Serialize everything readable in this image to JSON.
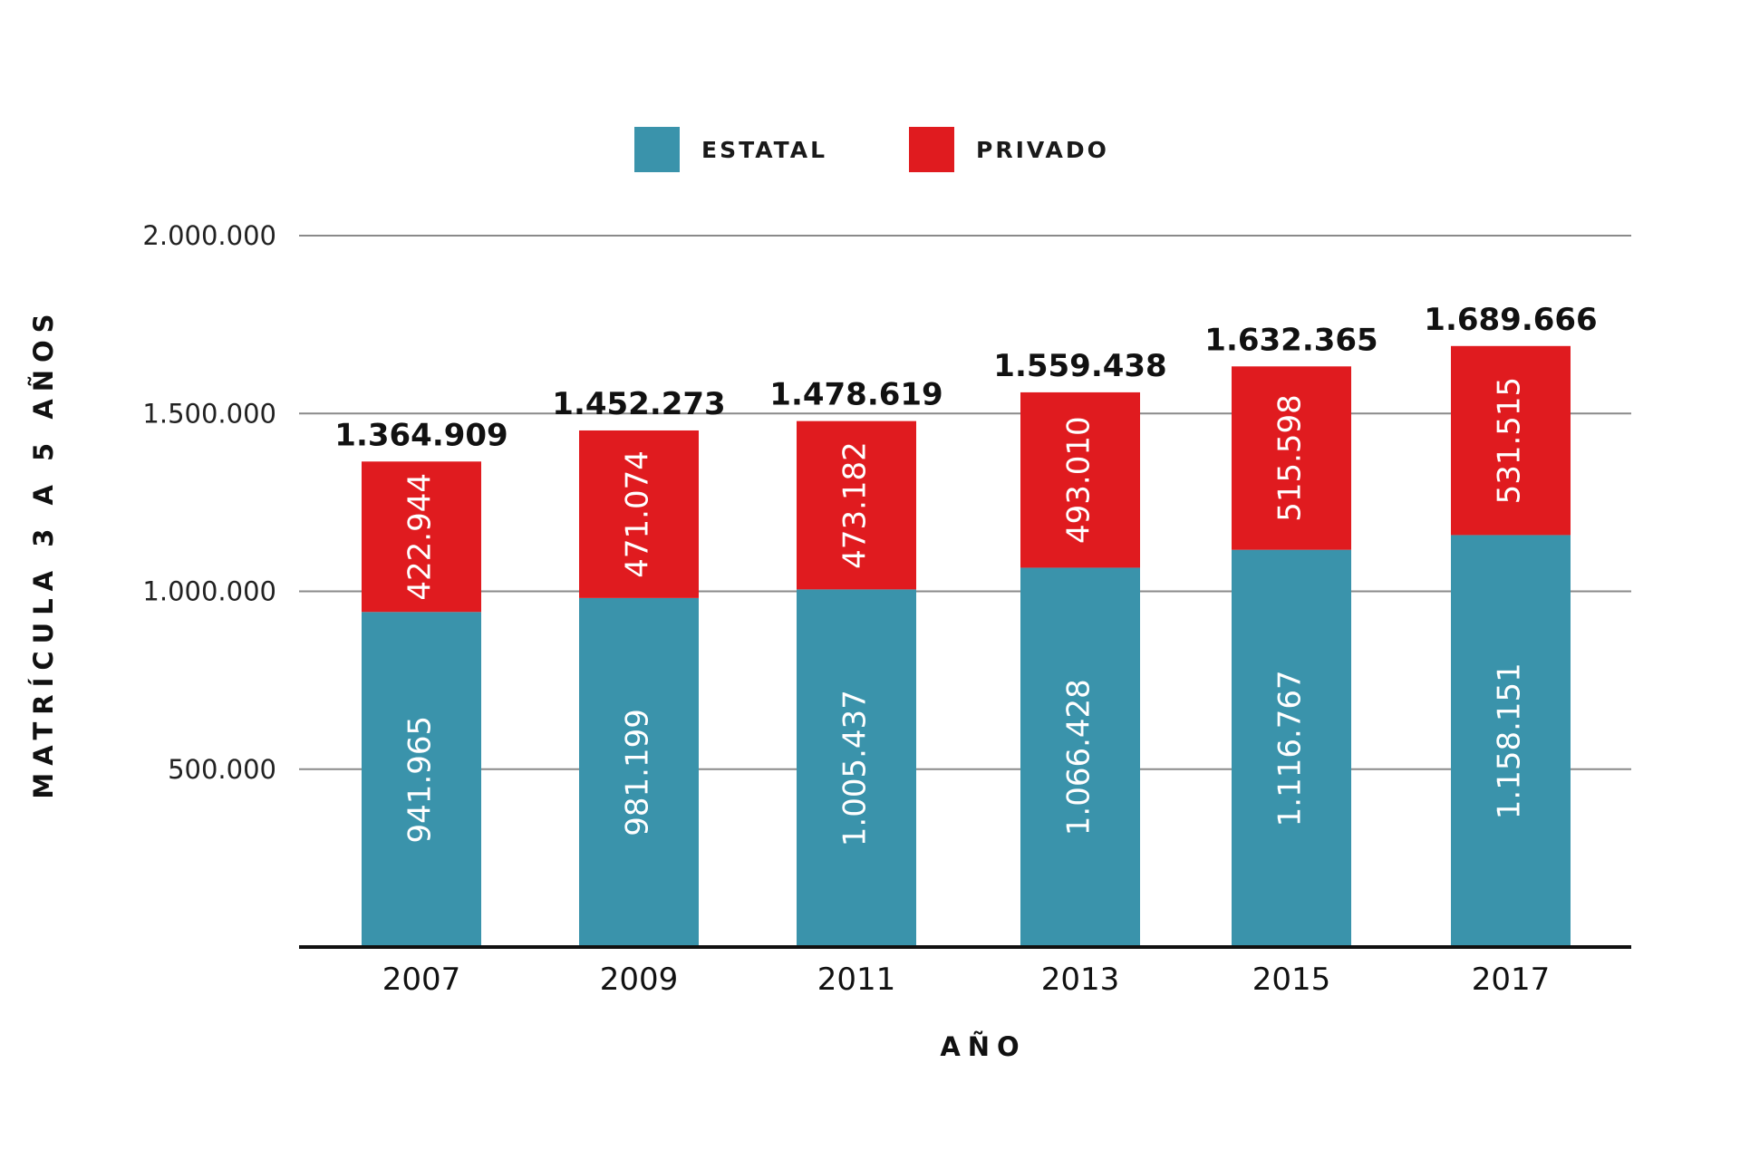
{
  "chart_data": {
    "type": "bar",
    "stacked": true,
    "categories": [
      "2007",
      "2009",
      "2011",
      "2013",
      "2015",
      "2017"
    ],
    "series": [
      {
        "name": "ESTATAL",
        "values": [
          941965,
          981199,
          1005437,
          1066428,
          1116767,
          1158151
        ],
        "labels": [
          "941.965",
          "981.199",
          "1.005.437",
          "1.066.428",
          "1.116.767",
          "1.158.151"
        ],
        "color": "#3a93ab"
      },
      {
        "name": "PRIVADO",
        "values": [
          422944,
          471074,
          473182,
          493010,
          515598,
          531515
        ],
        "labels": [
          "422.944",
          "471.074",
          "473.182",
          "493.010",
          "515.598",
          "531.515"
        ],
        "color": "#e01b1f"
      }
    ],
    "totals": [
      "1.364.909",
      "1.452.273",
      "1.478.619",
      "1.559.438",
      "1.632.365",
      "1.689.666"
    ],
    "yticks": [
      500000,
      1000000,
      1500000,
      2000000
    ],
    "ytick_labels": [
      "500.000",
      "1.000.000",
      "1.500.000",
      "2.000.000"
    ],
    "ylim": [
      0,
      2000000
    ],
    "xlabel": "AÑO",
    "ylabel": "MATRÍCULA 3 A 5 AÑOS",
    "grid": true,
    "legend_position": "top"
  }
}
